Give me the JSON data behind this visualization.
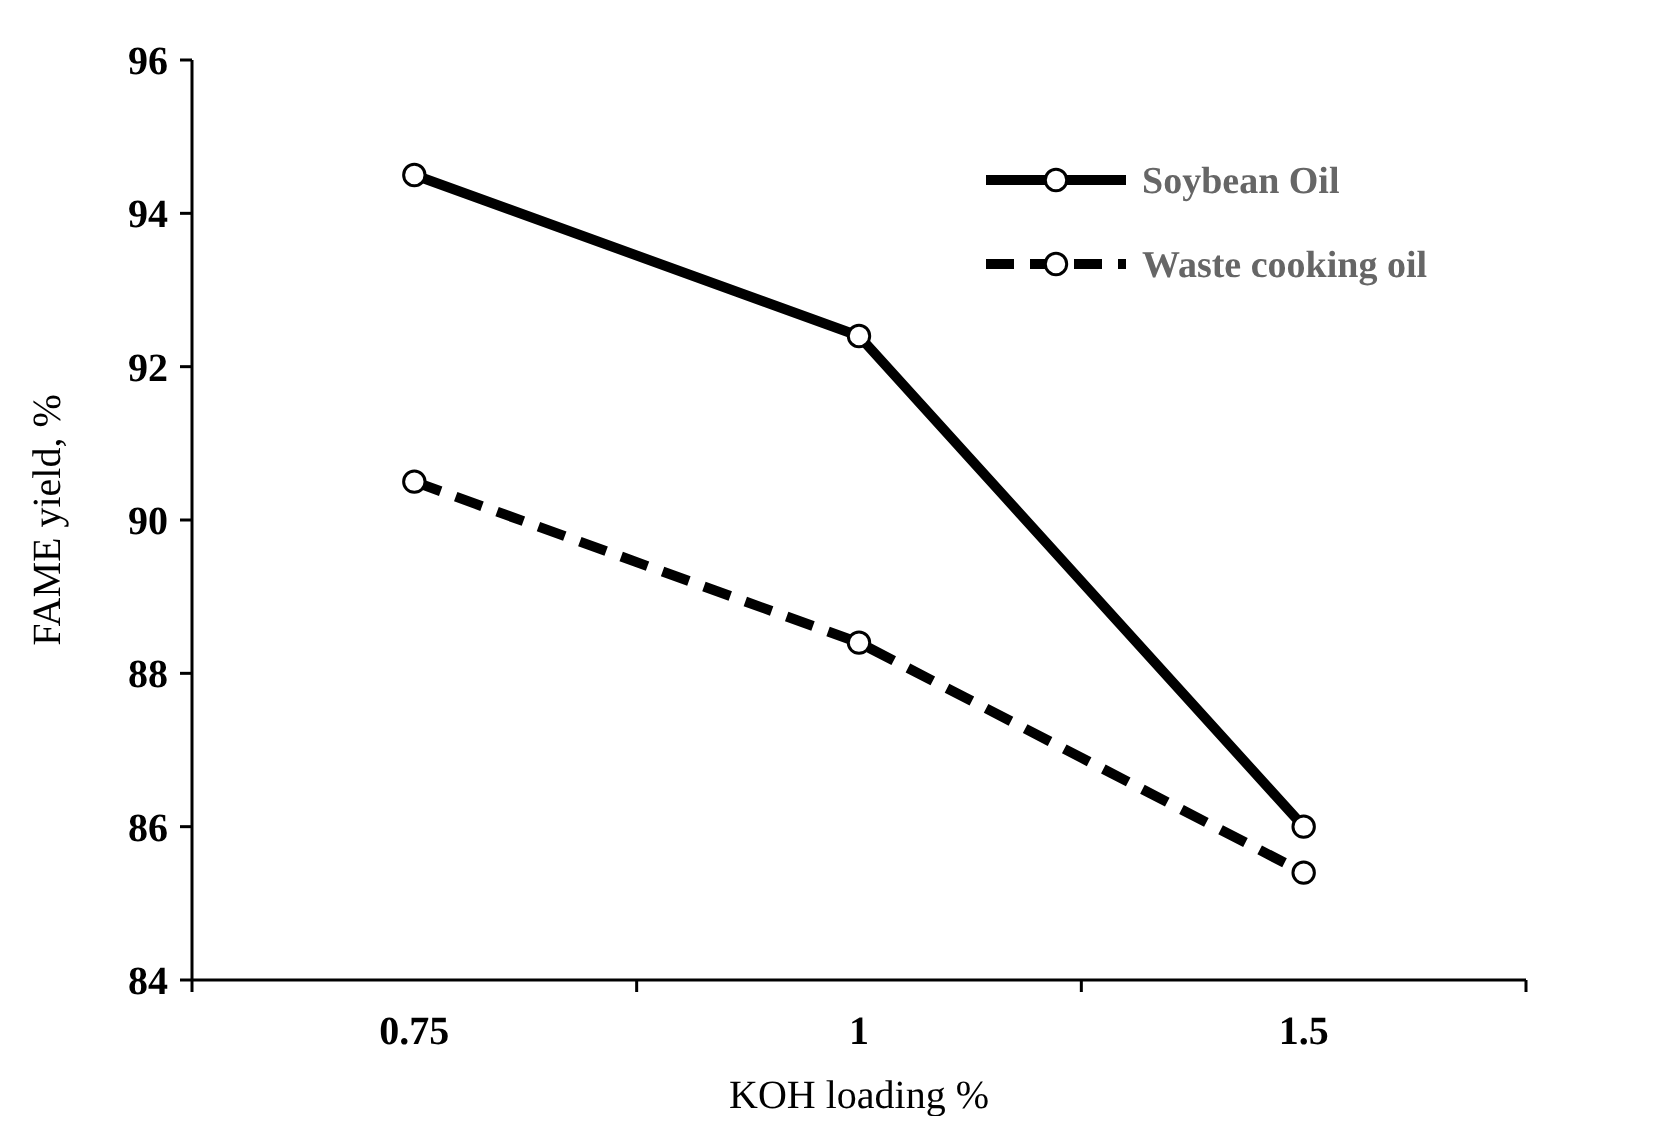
{
  "chart_data": {
    "type": "line",
    "xlabel": "KOH loading %",
    "ylabel": "FAME yield, %",
    "categories": [
      "0.75",
      "1",
      "1.5"
    ],
    "ylim": [
      84,
      96
    ],
    "yticks": [
      84,
      86,
      88,
      90,
      92,
      94,
      96
    ],
    "grid": false,
    "legend": "top right",
    "marker": "circle",
    "series": [
      {
        "name": "Soybean Oil",
        "color": "#000000",
        "line_style": "solid",
        "values": [
          94.5,
          92.4,
          86.0
        ]
      },
      {
        "name": "Waste cooking oil",
        "color": "#000000",
        "line_style": "dashed",
        "values": [
          90.5,
          88.4,
          85.4
        ]
      }
    ]
  }
}
